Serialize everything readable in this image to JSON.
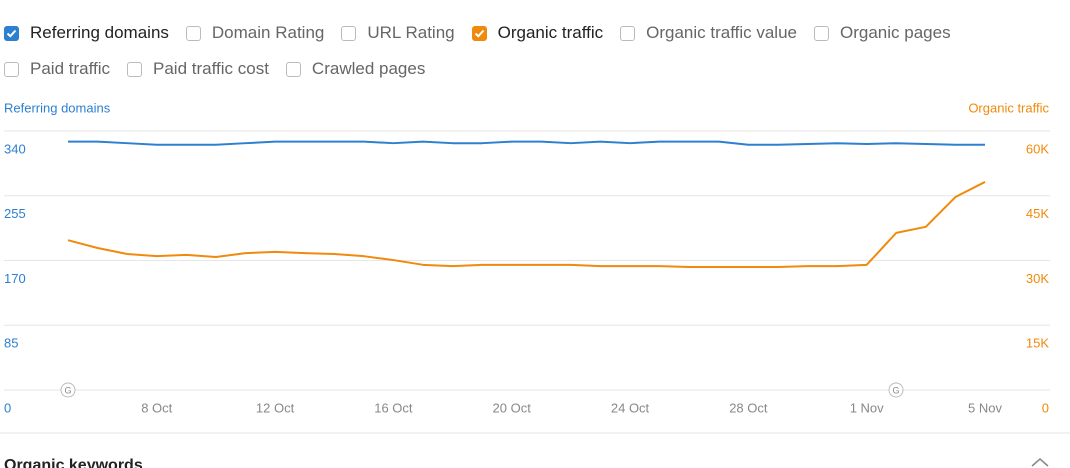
{
  "filters": [
    {
      "label": "Referring domains",
      "checked": true,
      "color": "#2d7fd0"
    },
    {
      "label": "Domain Rating",
      "checked": false
    },
    {
      "label": "URL Rating",
      "checked": false
    },
    {
      "label": "Organic traffic",
      "checked": true,
      "color": "#f08a0c"
    },
    {
      "label": "Organic traffic value",
      "checked": false
    },
    {
      "label": "Organic pages",
      "checked": false
    },
    {
      "label": "Paid traffic",
      "checked": false
    },
    {
      "label": "Paid traffic cost",
      "checked": false
    },
    {
      "label": "Crawled pages",
      "checked": false
    }
  ],
  "chart_data": {
    "type": "line",
    "y_label": "Referring domains",
    "y2_label": "Organic traffic",
    "categories": [
      null,
      null,
      null,
      "8 Oct",
      null,
      null,
      null,
      "12 Oct",
      null,
      null,
      null,
      "16 Oct",
      null,
      null,
      null,
      "20 Oct",
      null,
      null,
      null,
      "24 Oct",
      null,
      null,
      null,
      "28 Oct",
      null,
      null,
      null,
      "1 Nov",
      null,
      null,
      null,
      "5 Nov"
    ],
    "series": [
      {
        "name": "Referring domains",
        "color": "#2d7fd0",
        "axis": "y",
        "values": [
          326,
          326,
          324,
          322,
          322,
          322,
          324,
          326,
          326,
          326,
          326,
          324,
          326,
          324,
          324,
          326,
          326,
          324,
          326,
          324,
          326,
          326,
          326,
          322,
          322,
          323,
          324,
          323,
          324,
          323,
          322,
          322
        ]
      },
      {
        "name": "Organic traffic",
        "color": "#f08a0c",
        "axis": "y2",
        "values": [
          34700,
          32900,
          31500,
          31000,
          31300,
          30800,
          31700,
          32000,
          31700,
          31500,
          31000,
          30100,
          29000,
          28700,
          29000,
          29000,
          29000,
          29000,
          28700,
          28700,
          28700,
          28500,
          28500,
          28500,
          28500,
          28700,
          28700,
          29000,
          36400,
          37800,
          44700,
          48200
        ]
      }
    ],
    "ylim": [
      0,
      340
    ],
    "yticks": [
      0,
      85,
      170,
      255,
      340
    ],
    "y2lim": [
      0,
      60000
    ],
    "y2ticks": [
      0,
      {
        "value": 15000,
        "label": "15K"
      },
      {
        "value": 30000,
        "label": "30K"
      },
      {
        "value": 45000,
        "label": "45K"
      },
      {
        "value": 60000,
        "label": "60K"
      }
    ],
    "grid": true,
    "annotations": [
      "G",
      "G"
    ]
  },
  "section_title": "Organic keywords"
}
